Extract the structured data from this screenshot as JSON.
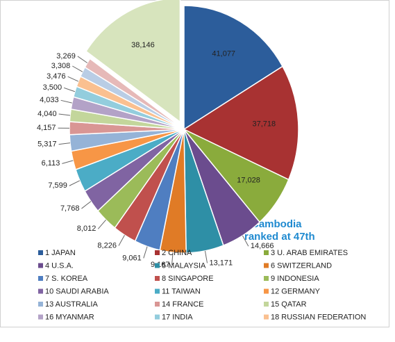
{
  "chart_data": {
    "type": "pie",
    "categories": [
      "1 JAPAN",
      "2 CHINA",
      "3 U. ARAB EMIRATES",
      "4 U.S.A.",
      "5 MALAYSIA",
      "6 SWITZERLAND",
      "7 S. KOREA",
      "8 SINGAPORE",
      "9 INDONESIA",
      "10 SAUDI ARABIA",
      "11 TAIWAN",
      "12 GERMANY",
      "13 AUSTRALIA",
      "14 FRANCE",
      "15 QATAR",
      "16 MYANMAR",
      "17 INDIA",
      "18 RUSSIAN FEDERATION",
      null,
      null,
      null
    ],
    "values": [
      41077,
      37718,
      17028,
      14666,
      13171,
      9167,
      9061,
      8226,
      8012,
      7768,
      7599,
      6113,
      5317,
      4157,
      4040,
      4033,
      3500,
      3476,
      3308,
      3269,
      38146
    ],
    "value_labels": [
      "41,077",
      "37,718",
      "17,028",
      "14,666",
      "13,171",
      "9,167",
      "9,061",
      "8,226",
      "8,012",
      "7,768",
      "7,599",
      "6,113",
      "5,317",
      "4,157",
      "4,040",
      "4,033",
      "3,500",
      "3,476",
      "3,308",
      "3,269",
      "38,146"
    ],
    "colors": [
      "#2c5d9b",
      "#a83232",
      "#8aab3c",
      "#6b4c8e",
      "#2e8fa6",
      "#e07b26",
      "#4f7ec1",
      "#c0504d",
      "#9bbb59",
      "#8064a2",
      "#4bacc6",
      "#f79646",
      "#95b3d7",
      "#d99694",
      "#c3d69b",
      "#b3a2c7",
      "#93cddd",
      "#fac090",
      "#b9cde5",
      "#e6b9b8",
      "#d7e4bd"
    ],
    "annotation": [
      "* Cambodia",
      "ranked at 47th"
    ]
  }
}
